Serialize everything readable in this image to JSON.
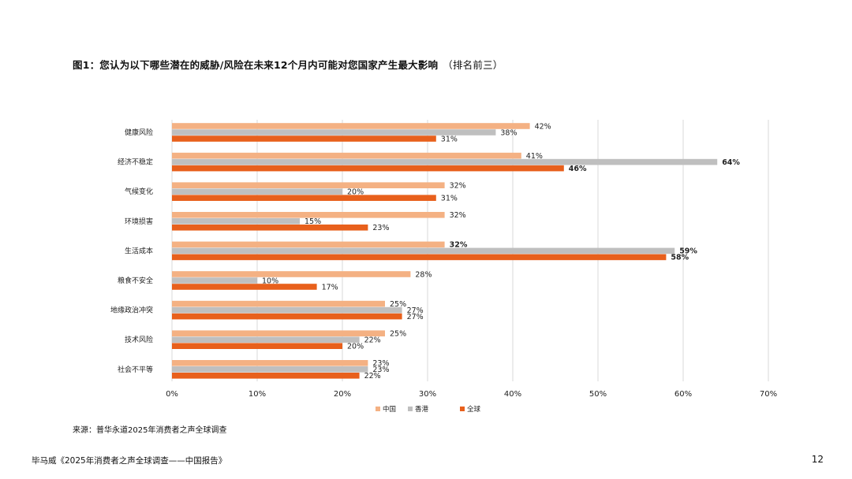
{
  "title": "图1：您认为以下哪些潜在的威胁/风险在未来12个月内可能对您国家产生最大影响",
  "title_suffix": "（排名前三）",
  "source": "来源：普华永道2025年消费者之声全球调查",
  "footer": "毕马威《2025年消费者之声全球调查——中国报告》",
  "page_number": "12",
  "colors": {
    "china": "#F4B183",
    "hongkong": "#BFBFBF",
    "global": "#E8601C",
    "grid": "#D9D9D9"
  },
  "chart_data": {
    "type": "bar",
    "orientation": "horizontal",
    "categories": [
      "健康风险",
      "经济不稳定",
      "气候变化",
      "环境损害",
      "生活成本",
      "粮食不安全",
      "地缘政治冲突",
      "技术风险",
      "社会不平等"
    ],
    "series": [
      {
        "name": "中国",
        "values": [
          42,
          41,
          32,
          32,
          32,
          28,
          25,
          25,
          23
        ],
        "labels": [
          "42%",
          "41%",
          "32%",
          "32%",
          "32%",
          "28%",
          "25%",
          "25%",
          "23%"
        ]
      },
      {
        "name": "香港",
        "values": [
          38,
          64,
          20,
          15,
          59,
          10,
          27,
          22,
          23
        ],
        "labels": [
          "38%",
          "64%",
          "20%",
          "15%",
          "59%",
          "10%",
          "27%",
          "22%",
          "23%"
        ]
      },
      {
        "name": "全球",
        "values": [
          31,
          46,
          31,
          23,
          58,
          17,
          27,
          20,
          22
        ],
        "labels": [
          "31%",
          "46%",
          "31%",
          "23%",
          "58%",
          "17%",
          "27%",
          "20%",
          "22%"
        ]
      }
    ],
    "bold_labels": [
      [
        false,
        false,
        false
      ],
      [
        false,
        true,
        true
      ],
      [
        false,
        false,
        false
      ],
      [
        false,
        false,
        false
      ],
      [
        true,
        true,
        true
      ],
      [
        false,
        false,
        false
      ],
      [
        false,
        false,
        false
      ],
      [
        false,
        false,
        false
      ],
      [
        false,
        false,
        false
      ]
    ],
    "xlim": [
      0,
      70
    ],
    "xticks": [
      0,
      10,
      20,
      30,
      40,
      50,
      60,
      70
    ],
    "xtick_labels": [
      "0%",
      "10%",
      "20%",
      "30%",
      "40%",
      "50%",
      "60%",
      "70%"
    ],
    "grid": true,
    "legend_position": "bottom"
  }
}
